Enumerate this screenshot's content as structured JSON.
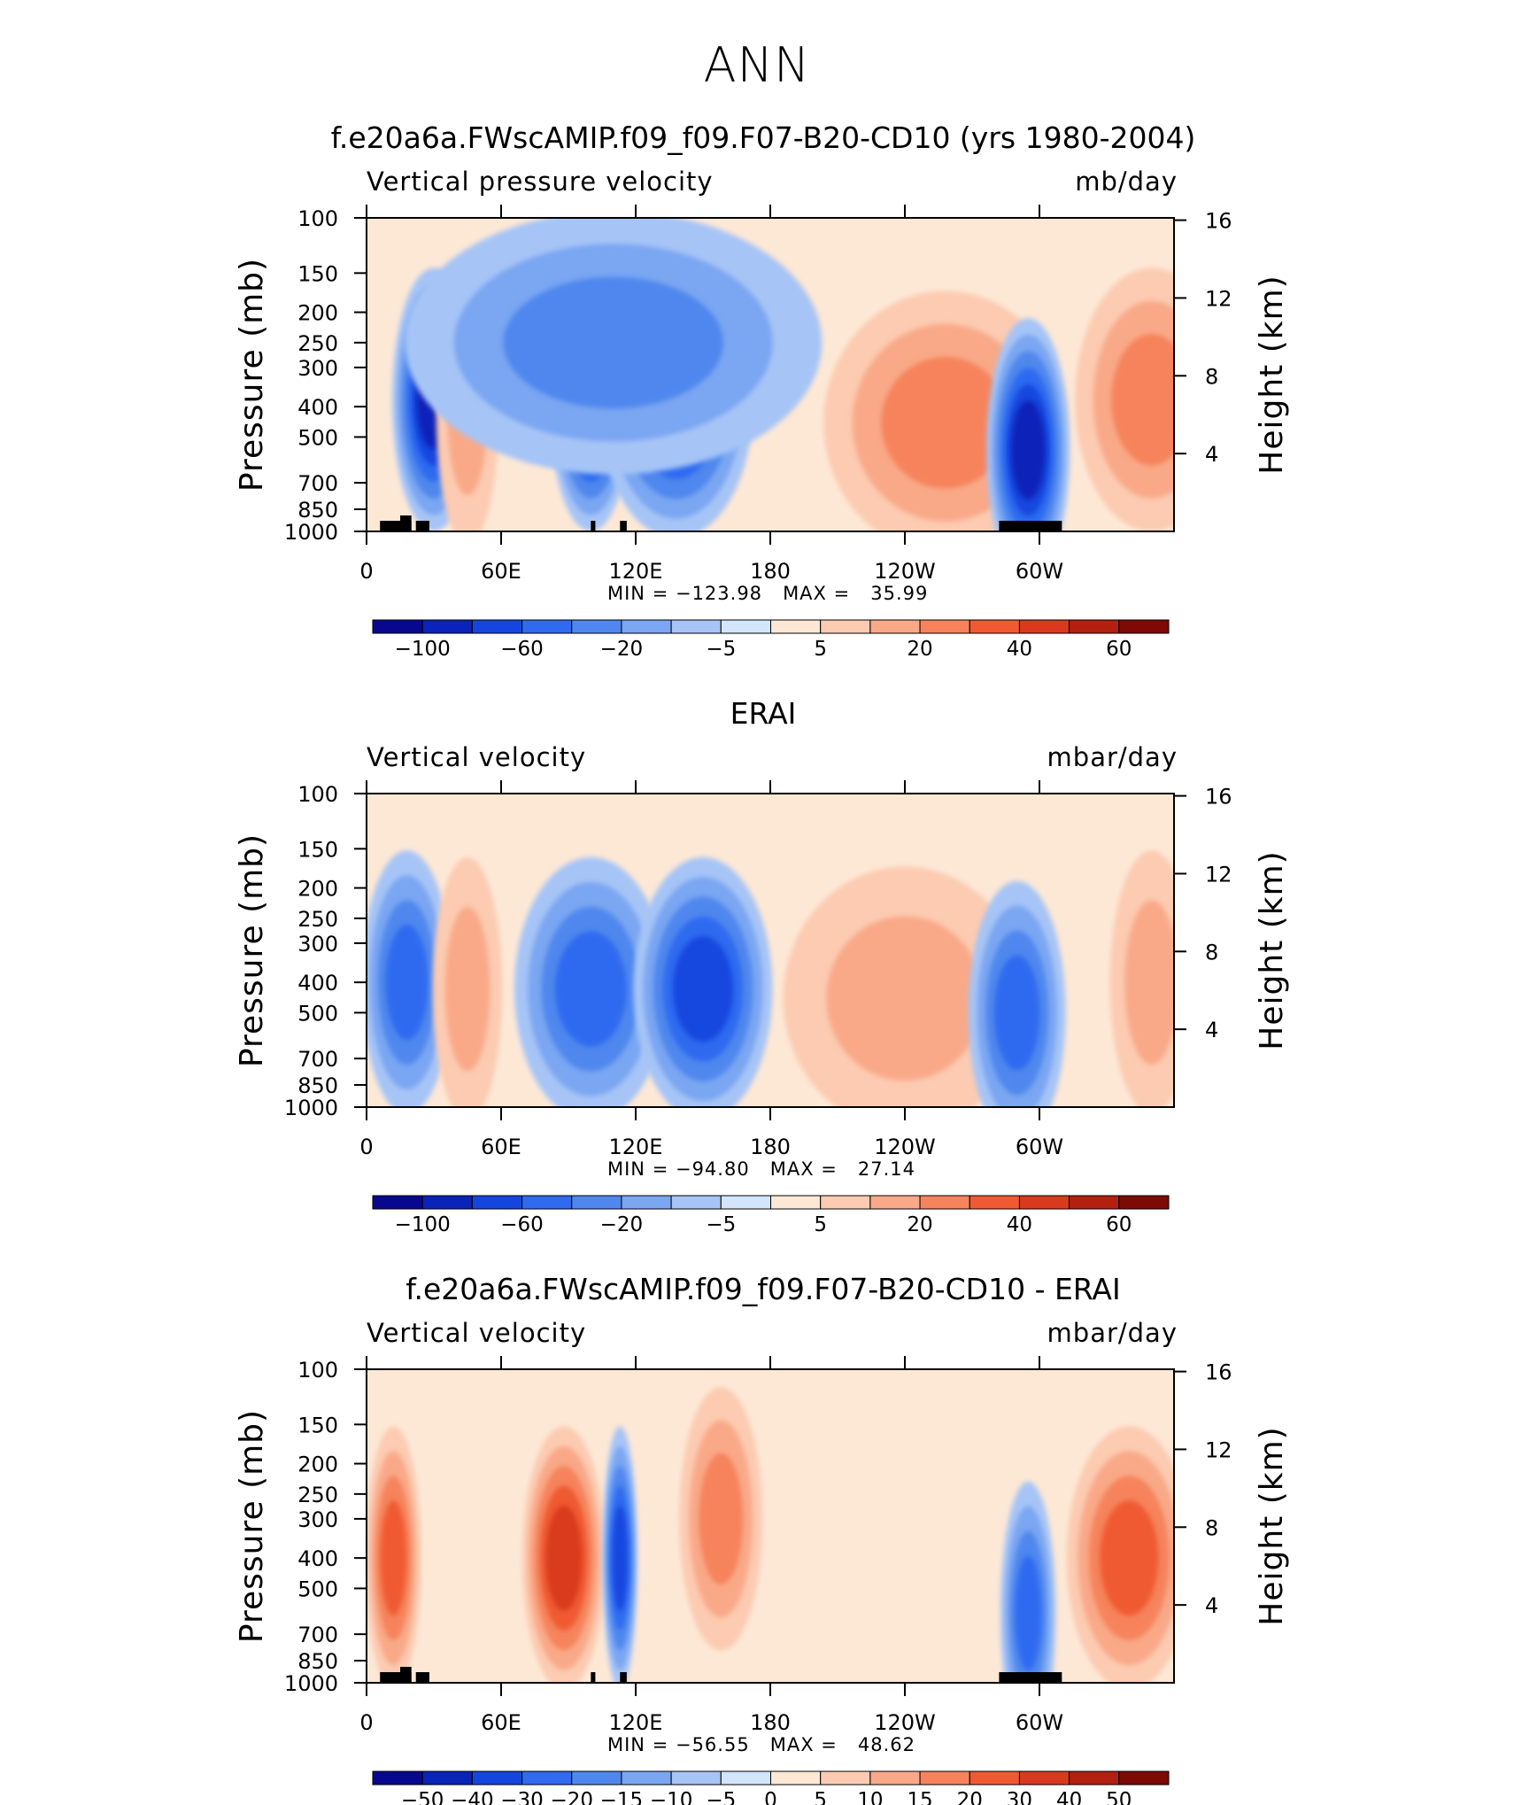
{
  "page_title": "ANN",
  "colors": {
    "scale": [
      "#08088f",
      "#0a23b9",
      "#1446df",
      "#2f6af0",
      "#4f87ee",
      "#7aa6f2",
      "#a6c4f6",
      "#d3e5fb",
      "#fde8d6",
      "#fccbb1",
      "#f9a988",
      "#f6835c",
      "#f05a32",
      "#d93a1d",
      "#b3200f",
      "#7d0a05"
    ]
  },
  "shared_axes": {
    "x_ticks": [
      "0",
      "60E",
      "120E",
      "180",
      "120W",
      "60W"
    ],
    "x_tick_lon": [
      0,
      60,
      120,
      180,
      240,
      300
    ],
    "x_lim": [
      0,
      360
    ],
    "pressure_ticks": [
      "100",
      "150",
      "200",
      "250",
      "300",
      "400",
      "500",
      "700",
      "850",
      "1000"
    ],
    "pressure_values": [
      100,
      150,
      200,
      250,
      300,
      400,
      500,
      700,
      850,
      1000
    ],
    "height_ticks": [
      "16",
      "12",
      "8",
      "4"
    ],
    "height_values": [
      16,
      12,
      8,
      4
    ],
    "left_axis_label": "Pressure (mb)",
    "right_axis_label": "Height (km)",
    "y_scale": "log"
  },
  "panels": [
    {
      "title": "f.e20a6a.FWscAMIP.f09_f09.F07-B20-CD10 (yrs 1980-2004)",
      "variable": "Vertical pressure velocity",
      "units": "mb/day",
      "minmax": "MIN = −123.98   MAX =   35.99",
      "colorbar_labels": [
        "−100",
        "−60",
        "−20",
        "−5",
        "5",
        "20",
        "40",
        "60"
      ],
      "show_topography": true
    },
    {
      "title": "ERAI",
      "variable": "Vertical velocity",
      "units": "mbar/day",
      "minmax": "MIN = −94.80   MAX =   27.14",
      "colorbar_labels": [
        "−100",
        "−60",
        "−20",
        "−5",
        "5",
        "20",
        "40",
        "60"
      ],
      "show_topography": false
    },
    {
      "title": "f.e20a6a.FWscAMIP.f09_f09.F07-B20-CD10 - ERAI",
      "variable": "Vertical velocity",
      "units": "mbar/day",
      "minmax": "MIN = −56.55   MAX =   48.62",
      "colorbar_labels": [
        "−50",
        "−40",
        "−30",
        "−20",
        "−15",
        "−10",
        "−5",
        "0",
        "5",
        "10",
        "15",
        "20",
        "30",
        "40",
        "50"
      ],
      "show_topography": true
    }
  ],
  "chart_data": [
    {
      "type": "heatmap",
      "title": "f.e20a6a.FWscAMIP.f09_f09.F07-B20-CD10 (yrs 1980-2004)",
      "variable": "Vertical pressure velocity",
      "units": "mb/day",
      "xlabel": "",
      "ylabel": "Pressure (mb)",
      "y2label": "Height (km)",
      "xlim": [
        0,
        360
      ],
      "ylim": [
        1000,
        100
      ],
      "min": -123.98,
      "max": 35.99,
      "levels": [
        -100,
        -80,
        -60,
        -40,
        -20,
        -10,
        -5,
        0,
        5,
        10,
        20,
        30,
        40,
        50,
        60
      ],
      "features": [
        {
          "lon": 30,
          "p": 380,
          "w_lon": 12,
          "value": -85
        },
        {
          "lon": 45,
          "p": 420,
          "w_lon": 9,
          "value": 18
        },
        {
          "lon": 100,
          "p": 380,
          "w_lon": 12,
          "value": -80
        },
        {
          "lon": 138,
          "p": 400,
          "w_lon": 22,
          "value": -60
        },
        {
          "lon": 110,
          "p": 250,
          "w_lon": 60,
          "value": -22
        },
        {
          "lon": 258,
          "p": 450,
          "w_lon": 35,
          "value": 22
        },
        {
          "lon": 295,
          "p": 550,
          "w_lon": 12,
          "value": -90
        },
        {
          "lon": 350,
          "p": 380,
          "w_lon": 22,
          "value": 24
        }
      ]
    },
    {
      "type": "heatmap",
      "title": "ERAI",
      "variable": "Vertical velocity",
      "units": "mbar/day",
      "xlabel": "",
      "ylabel": "Pressure (mb)",
      "y2label": "Height (km)",
      "xlim": [
        0,
        360
      ],
      "ylim": [
        1000,
        100
      ],
      "min": -94.8,
      "max": 27.14,
      "levels": [
        -100,
        -80,
        -60,
        -40,
        -20,
        -10,
        -5,
        0,
        5,
        10,
        20,
        30,
        40,
        50,
        60
      ],
      "features": [
        {
          "lon": 18,
          "p": 400,
          "w_lon": 13,
          "value": -50
        },
        {
          "lon": 45,
          "p": 420,
          "w_lon": 10,
          "value": 14
        },
        {
          "lon": 100,
          "p": 420,
          "w_lon": 22,
          "value": -55
        },
        {
          "lon": 150,
          "p": 420,
          "w_lon": 20,
          "value": -60
        },
        {
          "lon": 240,
          "p": 450,
          "w_lon": 35,
          "value": 14
        },
        {
          "lon": 290,
          "p": 500,
          "w_lon": 14,
          "value": -50
        },
        {
          "lon": 350,
          "p": 400,
          "w_lon": 12,
          "value": 10
        }
      ]
    },
    {
      "type": "heatmap",
      "title": "f.e20a6a.FWscAMIP.f09_f09.F07-B20-CD10 - ERAI",
      "variable": "Vertical velocity",
      "units": "mbar/day",
      "xlabel": "",
      "ylabel": "Pressure (mb)",
      "y2label": "Height (km)",
      "xlim": [
        0,
        360
      ],
      "ylim": [
        1000,
        100
      ],
      "min": -56.55,
      "max": 48.62,
      "levels": [
        -50,
        -40,
        -30,
        -20,
        -15,
        -10,
        -5,
        0,
        5,
        10,
        15,
        20,
        30,
        40,
        50
      ],
      "features": [
        {
          "lon": 12,
          "p": 400,
          "w_lon": 8,
          "value": 25
        },
        {
          "lon": 88,
          "p": 400,
          "w_lon": 12,
          "value": 35
        },
        {
          "lon": 113,
          "p": 400,
          "w_lon": 5,
          "value": -35
        },
        {
          "lon": 158,
          "p": 300,
          "w_lon": 12,
          "value": 18
        },
        {
          "lon": 295,
          "p": 600,
          "w_lon": 8,
          "value": -25
        },
        {
          "lon": 340,
          "p": 400,
          "w_lon": 18,
          "value": 28
        }
      ]
    }
  ]
}
